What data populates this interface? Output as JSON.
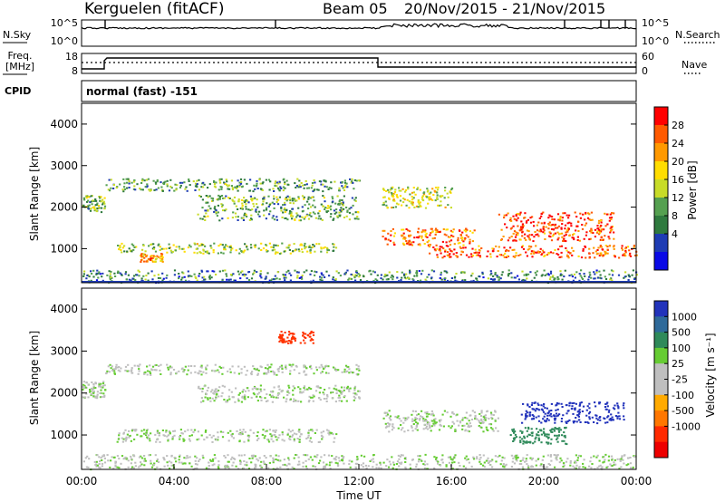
{
  "header": {
    "station": "Kerguelen (fitACF)",
    "beam": "Beam 05",
    "date_range": "20/Nov/2015 - 21/Nov/2015"
  },
  "summary_panels": {
    "nsky_label": "N.Sky",
    "nsky_ticks": [
      "10^5",
      "10^0"
    ],
    "nsearch_label": "N.Search",
    "nsearch_ticks": [
      "10^5",
      "10^0"
    ],
    "freq_label_line1": "Freq.",
    "freq_label_line2": "[MHz]",
    "freq_ticks": [
      "18",
      "8"
    ],
    "nave_label": "Nave",
    "nave_ticks": [
      "60",
      "0"
    ],
    "cpid_label": "CPID",
    "cpid_value": "normal (fast) -151"
  },
  "colorbars": {
    "power": {
      "label": "Power [dB]",
      "ticks": [
        "28",
        "24",
        "20",
        "16",
        "12",
        "8",
        "4"
      ],
      "colors": [
        "#ff0000",
        "#ff5a00",
        "#ff9900",
        "#ffdd00",
        "#c8dc28",
        "#55a050",
        "#2f7a3e",
        "#1e3cb4",
        "#0a0ae6"
      ]
    },
    "velocity": {
      "label": "Velocity [m s⁻¹]",
      "ticks": [
        "1000",
        "500",
        "100",
        "25",
        "-25",
        "-100",
        "-500",
        "-1000"
      ],
      "colors": [
        "#2233bb",
        "#2f6a9a",
        "#2f8a5a",
        "#66cc33",
        "#bfbfbf",
        "#bfbfbf",
        "#ffaa00",
        "#ff7700",
        "#ff2a00",
        "#ee0000"
      ]
    }
  },
  "chart_data": [
    {
      "type": "heatmap",
      "title": "Power",
      "ylabel": "Slant Range [km]",
      "ylim": [
        180,
        4500
      ],
      "yticks": [
        "1000",
        "2000",
        "3000",
        "4000"
      ],
      "xlim_hours": [
        0,
        24
      ],
      "scatter_bands": [
        {
          "t0": 0,
          "t1": 1,
          "r0": 1900,
          "r1": 2300,
          "value_db": 12
        },
        {
          "t0": 1.5,
          "t1": 11,
          "r0": 900,
          "r1": 1150,
          "value_db": 14
        },
        {
          "t0": 2.5,
          "t1": 3.5,
          "r0": 700,
          "r1": 900,
          "value_db": 22
        },
        {
          "t0": 1,
          "t1": 12,
          "r0": 2400,
          "r1": 2700,
          "value_db": 10
        },
        {
          "t0": 5,
          "t1": 12,
          "r0": 1700,
          "r1": 2300,
          "value_db": 11
        },
        {
          "t0": 13,
          "t1": 17,
          "r0": 1100,
          "r1": 1500,
          "value_db": 24
        },
        {
          "t0": 13,
          "t1": 16,
          "r0": 2000,
          "r1": 2500,
          "value_db": 16
        },
        {
          "t0": 15,
          "t1": 24,
          "r0": 800,
          "r1": 1100,
          "value_db": 26
        },
        {
          "t0": 18,
          "t1": 23,
          "r0": 1200,
          "r1": 1900,
          "value_db": 27
        },
        {
          "t0": 0,
          "t1": 24,
          "r0": 200,
          "r1": 500,
          "value_db": 8
        }
      ]
    },
    {
      "type": "heatmap",
      "title": "Velocity",
      "ylabel": "Slant Range [km]",
      "xlabel": "Time UT",
      "ylim": [
        180,
        4500
      ],
      "yticks": [
        "1000",
        "2000",
        "3000",
        "4000"
      ],
      "xticks": [
        "00:00",
        "04:00",
        "08:00",
        "12:00",
        "16:00",
        "20:00",
        "00:00"
      ],
      "xlim_hours": [
        0,
        24
      ],
      "scatter_bands": [
        {
          "t0": 0,
          "t1": 1,
          "r0": 1900,
          "r1": 2300,
          "value_ms": 0
        },
        {
          "t0": 1.5,
          "t1": 11,
          "r0": 850,
          "r1": 1150,
          "value_ms": 0
        },
        {
          "t0": 1,
          "t1": 12,
          "r0": 2450,
          "r1": 2700,
          "value_ms": 0
        },
        {
          "t0": 5,
          "t1": 12,
          "r0": 1800,
          "r1": 2200,
          "value_ms": 0
        },
        {
          "t0": 13,
          "t1": 18,
          "r0": 1100,
          "r1": 1600,
          "value_ms": 0
        },
        {
          "t0": 18.5,
          "t1": 21,
          "r0": 800,
          "r1": 1200,
          "value_ms": 200
        },
        {
          "t0": 19,
          "t1": 23.5,
          "r0": 1300,
          "r1": 1800,
          "value_ms": 700
        },
        {
          "t0": 8.5,
          "t1": 10,
          "r0": 3200,
          "r1": 3500,
          "value_ms": -700
        },
        {
          "t0": 0,
          "t1": 24,
          "r0": 200,
          "r1": 550,
          "value_ms": 0
        }
      ]
    }
  ]
}
